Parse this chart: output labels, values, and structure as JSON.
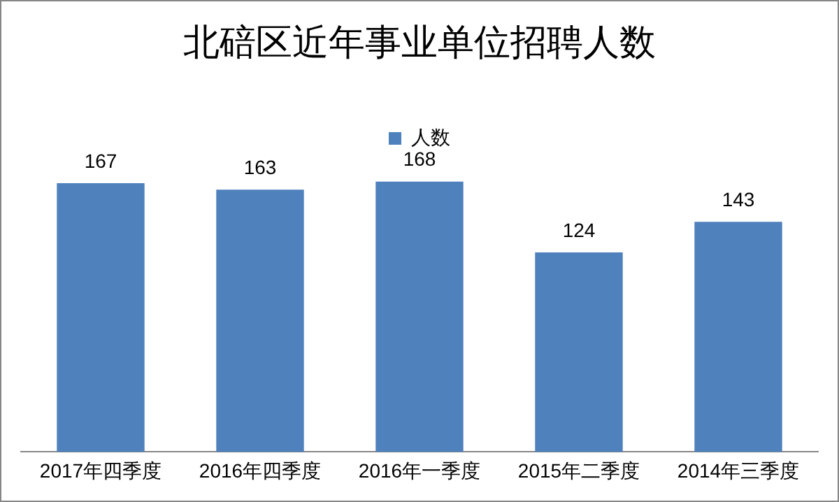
{
  "chart_data": {
    "type": "bar",
    "title": "北碚区近年事业单位招聘人数",
    "categories": [
      "2017年四季度",
      "2016年四季度",
      "2016年一季度",
      "2015年二季度",
      "2014年三季度"
    ],
    "series": [
      {
        "name": "人数",
        "color": "#4f81bd",
        "values": [
          167,
          163,
          168,
          124,
          143
        ]
      }
    ],
    "data_labels": true,
    "legend": "top",
    "grid": false,
    "tick_labels": "x"
  }
}
